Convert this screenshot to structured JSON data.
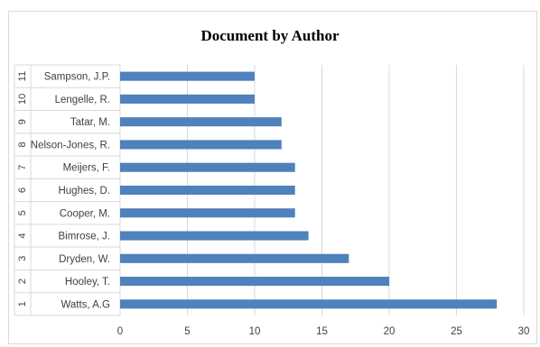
{
  "chart_data": {
    "type": "bar",
    "orientation": "horizontal",
    "title": "Document by Author",
    "xlabel": "",
    "ylabel": "",
    "categories": [
      {
        "index": "1",
        "name": "Watts, A.G"
      },
      {
        "index": "2",
        "name": "Hooley, T."
      },
      {
        "index": "3",
        "name": "Dryden, W."
      },
      {
        "index": "4",
        "name": "Bimrose, J."
      },
      {
        "index": "5",
        "name": "Cooper, M."
      },
      {
        "index": "6",
        "name": "Hughes, D."
      },
      {
        "index": "7",
        "name": "Meijers, F."
      },
      {
        "index": "8",
        "name": "Nelson-Jones, R."
      },
      {
        "index": "9",
        "name": "Tatar, M."
      },
      {
        "index": "10",
        "name": "Lengelle, R."
      },
      {
        "index": "11",
        "name": "Sampson, J.P."
      }
    ],
    "values": [
      28,
      20,
      17,
      14,
      13,
      13,
      13,
      12,
      12,
      10,
      10
    ],
    "xlim": [
      0,
      30
    ],
    "xticks": [
      0,
      5,
      10,
      15,
      20,
      25,
      30
    ],
    "grid": true,
    "bar_color": "#4f81bd",
    "grid_color": "#d9d9d9"
  }
}
